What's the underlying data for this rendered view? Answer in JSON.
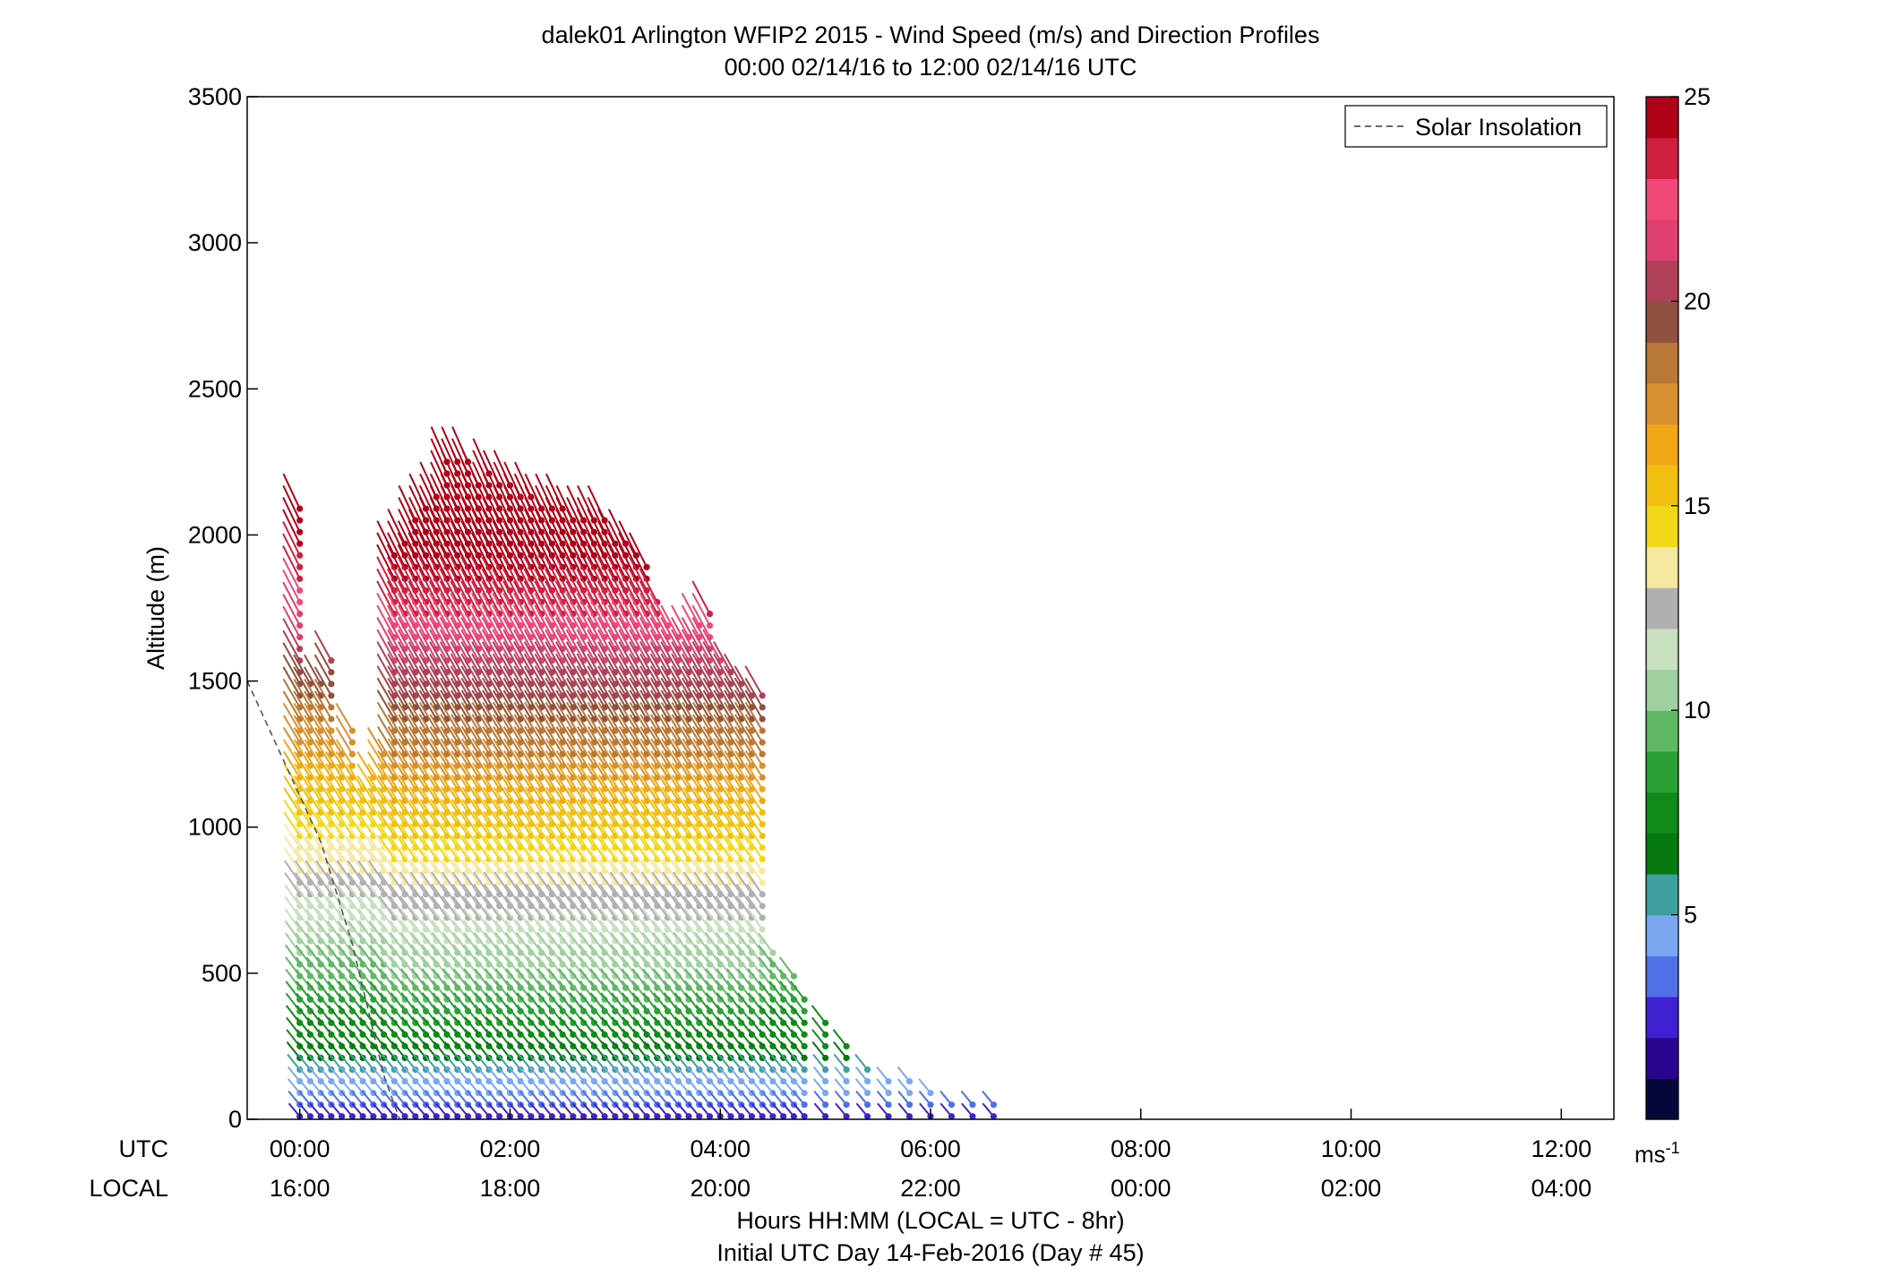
{
  "chart_data": {
    "type": "wind-profile",
    "title": "dalek01 Arlington WFIP2 2015 - Wind Speed (m/s) and Direction Profiles",
    "subtitle": "00:00 02/14/16 to 12:00 02/14/16  UTC",
    "ylabel": "Altitude (m)",
    "xlabel": "Hours HH:MM  (LOCAL = UTC - 8hr)",
    "xlabel2": "Initial UTC Day 14-Feb-2016 (Day # 45)",
    "xlim": [
      -0.5,
      12.5
    ],
    "ylim": [
      0,
      3500
    ],
    "y_ticks": [
      0,
      500,
      1000,
      1500,
      2000,
      2500,
      3000,
      3500
    ],
    "x_ticks": [
      0,
      2,
      4,
      6,
      8,
      10,
      12
    ],
    "row_labels": {
      "utc": "UTC",
      "local": "LOCAL"
    },
    "utc_tick_labels": [
      "00:00",
      "02:00",
      "04:00",
      "06:00",
      "08:00",
      "10:00",
      "12:00"
    ],
    "local_tick_labels": [
      "16:00",
      "18:00",
      "20:00",
      "22:00",
      "00:00",
      "02:00",
      "04:00"
    ],
    "legend": {
      "entry": "Solar Insolation",
      "placement": "top-right"
    },
    "solar_insolation_line": [
      [
        -0.5,
        1500
      ],
      [
        0.2,
        950
      ],
      [
        0.5,
        600
      ],
      [
        0.8,
        150
      ],
      [
        0.95,
        0
      ]
    ],
    "colorbar": {
      "range": [
        0,
        25
      ],
      "tick_values": [
        5,
        10,
        15,
        20,
        25
      ],
      "tick_labels": [
        "5",
        "10",
        "15",
        "20",
        "25"
      ],
      "unit_label": "ms",
      "unit_exponent": "-1",
      "stops": [
        "#05063a",
        "#2a0590",
        "#4020d0",
        "#5070e8",
        "#7aa8f0",
        "#3ea0a0",
        "#05780f",
        "#108a18",
        "#2aa035",
        "#60b865",
        "#a0d0a0",
        "#c8e0c0",
        "#b0b0b0",
        "#f5e8a0",
        "#f0d818",
        "#f0c010",
        "#f0a818",
        "#d89030",
        "#b87838",
        "#905040",
        "#b04058",
        "#e04070",
        "#f04878",
        "#d02040",
        "#b00018"
      ]
    },
    "profiles": [
      {
        "t": 0.0,
        "bottom": 0,
        "top": 2100,
        "jet": 0
      },
      {
        "t": 0.1,
        "bottom": 0,
        "top": 1500,
        "jet": 0
      },
      {
        "t": 0.2,
        "bottom": 0,
        "top": 1500,
        "jet": 0
      },
      {
        "t": 0.3,
        "bottom": 0,
        "top": 1600,
        "jet": 0
      },
      {
        "t": 0.4,
        "bottom": 0,
        "top": 1250,
        "jet": 0
      },
      {
        "t": 0.5,
        "bottom": 0,
        "top": 1350,
        "jet": 0
      },
      {
        "t": 0.6,
        "bottom": 0,
        "top": 1150,
        "jet": 0
      },
      {
        "t": 0.7,
        "bottom": 0,
        "top": 1200,
        "jet": 0
      },
      {
        "t": 0.8,
        "bottom": 0,
        "top": 1250,
        "jet": 0
      },
      {
        "t": 0.9,
        "bottom": 0,
        "top": 1950,
        "jet": 1
      },
      {
        "t": 1.0,
        "bottom": 0,
        "top": 2000,
        "jet": 1
      },
      {
        "t": 1.1,
        "bottom": 0,
        "top": 2050,
        "jet": 1
      },
      {
        "t": 1.2,
        "bottom": 0,
        "top": 2100,
        "jet": 1
      },
      {
        "t": 1.3,
        "bottom": 0,
        "top": 2150,
        "jet": 1
      },
      {
        "t": 1.4,
        "bottom": 0,
        "top": 2250,
        "jet": 1
      },
      {
        "t": 1.5,
        "bottom": 0,
        "top": 2280,
        "jet": 1
      },
      {
        "t": 1.6,
        "bottom": 0,
        "top": 2250,
        "jet": 1
      },
      {
        "t": 1.7,
        "bottom": 0,
        "top": 2200,
        "jet": 1
      },
      {
        "t": 1.8,
        "bottom": 0,
        "top": 2230,
        "jet": 1
      },
      {
        "t": 1.9,
        "bottom": 0,
        "top": 2200,
        "jet": 1
      },
      {
        "t": 2.0,
        "bottom": 0,
        "top": 2200,
        "jet": 1
      },
      {
        "t": 2.1,
        "bottom": 0,
        "top": 2150,
        "jet": 1
      },
      {
        "t": 2.2,
        "bottom": 0,
        "top": 2150,
        "jet": 1
      },
      {
        "t": 2.3,
        "bottom": 0,
        "top": 2100,
        "jet": 1
      },
      {
        "t": 2.4,
        "bottom": 0,
        "top": 2100,
        "jet": 1
      },
      {
        "t": 2.5,
        "bottom": 0,
        "top": 2100,
        "jet": 1
      },
      {
        "t": 2.6,
        "bottom": 0,
        "top": 2080,
        "jet": 1
      },
      {
        "t": 2.7,
        "bottom": 0,
        "top": 2050,
        "jet": 1
      },
      {
        "t": 2.8,
        "bottom": 0,
        "top": 2050,
        "jet": 1
      },
      {
        "t": 2.9,
        "bottom": 0,
        "top": 2050,
        "jet": 1
      },
      {
        "t": 3.0,
        "bottom": 0,
        "top": 2000,
        "jet": 1
      },
      {
        "t": 3.1,
        "bottom": 0,
        "top": 2000,
        "jet": 1
      },
      {
        "t": 3.2,
        "bottom": 0,
        "top": 1950,
        "jet": 1
      },
      {
        "t": 3.3,
        "bottom": 0,
        "top": 1900,
        "jet": 1
      },
      {
        "t": 3.4,
        "bottom": 0,
        "top": 1800,
        "jet": 1
      },
      {
        "t": 3.5,
        "bottom": 0,
        "top": 1700,
        "jet": 1
      },
      {
        "t": 3.6,
        "bottom": 0,
        "top": 1650,
        "jet": 1
      },
      {
        "t": 3.7,
        "bottom": 0,
        "top": 1650,
        "jet": 1
      },
      {
        "t": 3.8,
        "bottom": 0,
        "top": 1700,
        "jet": 1
      },
      {
        "t": 3.9,
        "bottom": 0,
        "top": 1750,
        "jet": 1
      },
      {
        "t": 4.0,
        "bottom": 0,
        "top": 1600,
        "jet": 1
      },
      {
        "t": 4.1,
        "bottom": 0,
        "top": 1550,
        "jet": 1
      },
      {
        "t": 4.2,
        "bottom": 0,
        "top": 1500,
        "jet": 1
      },
      {
        "t": 4.3,
        "bottom": 0,
        "top": 1450,
        "jet": 1
      },
      {
        "t": 4.4,
        "bottom": 0,
        "top": 1450,
        "jet": 1
      },
      {
        "t": 4.5,
        "bottom": 0,
        "top": 600,
        "jet": 0
      },
      {
        "t": 4.6,
        "bottom": 0,
        "top": 520,
        "jet": 0
      },
      {
        "t": 4.7,
        "bottom": 0,
        "top": 500,
        "jet": 0
      },
      {
        "t": 4.8,
        "bottom": 0,
        "top": 420,
        "jet": 0
      },
      {
        "t": 5.0,
        "bottom": 0,
        "top": 350,
        "jet": 0
      },
      {
        "t": 5.2,
        "bottom": 0,
        "top": 250,
        "jet": 0
      },
      {
        "t": 5.4,
        "bottom": 0,
        "top": 200,
        "jet": 0
      },
      {
        "t": 5.6,
        "bottom": 0,
        "top": 160,
        "jet": 0
      },
      {
        "t": 5.8,
        "bottom": 0,
        "top": 150,
        "jet": 0
      },
      {
        "t": 6.0,
        "bottom": 0,
        "top": 100,
        "jet": 0
      },
      {
        "t": 6.2,
        "bottom": 0,
        "top": 60,
        "jet": 0
      },
      {
        "t": 6.4,
        "bottom": 0,
        "top": 50,
        "jet": 0
      },
      {
        "t": 6.6,
        "bottom": 0,
        "top": 50,
        "jet": 0
      }
    ]
  }
}
